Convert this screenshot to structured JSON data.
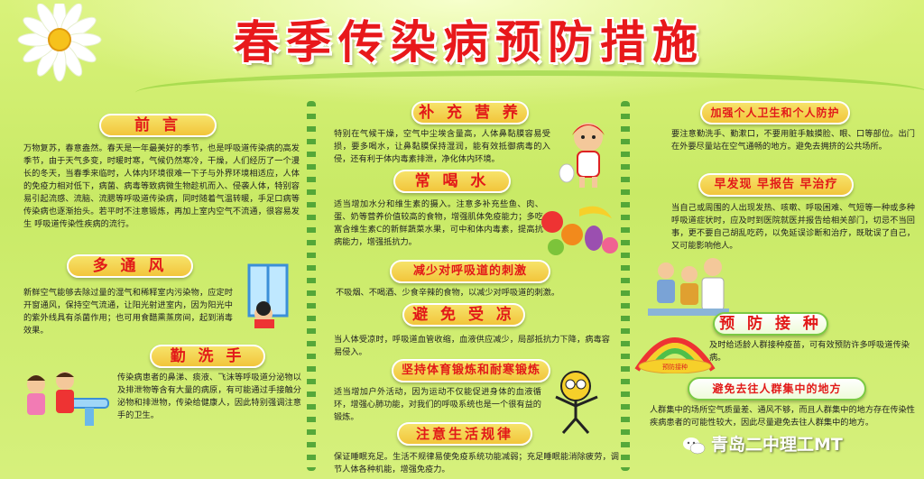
{
  "title": "春季传染病预防措施",
  "sections": {
    "preface": {
      "heading": "前 言",
      "text": "万物复苏，春意盎然。春天是一年最美好的季节，也是呼吸道传染病的高发季节，由于天气多变，时暖时寒，气候仍然寒冷，干燥，人们经历了一个漫长的冬天，当春季来临时，人体内环境很难一下子与外界环境相适应，人体的免疫力相对低下，病菌、病毒等致病微生物趁机而入、侵袭人体，特别容易引起流感、流脑、流腮等呼吸道传染病，同时随着气温转暖，手足口病等传染病也逐渐抬头。若平时不注意锻炼，再加上室内空气不流通，很容易发生 呼吸道传染性疾病的流行。"
    },
    "ventilation": {
      "heading": "多 通 风",
      "text": "新鲜空气能够去除过量的湿气和稀释室内污染物，应定时开窗通风，保持空气流通，让阳光射进室内，因为阳光中的紫外线具有杀菌作用；也可用食醋熏蒸房间，起到消毒效果。"
    },
    "handwash": {
      "heading": "勤 洗 手",
      "text": "传染病患者的鼻涕、痰液、飞沫等呼吸道分泌物以及排泄物等含有大量的病原，有可能通过手接触分泌物和排泄物，传染给健康人，因此特别强调注意手的卫生。"
    },
    "nutrition": {
      "heading": "补 充 营 养",
      "text": "特别在气候干燥，空气中尘埃含量高，人体鼻黏膜容易受损，要多喝水，让鼻黏膜保持湿润，能有效抵御病毒的入侵，还有利于体内毒素排泄，净化体内环境。"
    },
    "water": {
      "heading": "常 喝 水",
      "text": "适当增加水分和维生素的摄入。注意多补充些鱼、肉、蛋、奶等营养价值较高的食物，增强肌体免疫能力；多吃富含维生素C的新鲜蔬菜水果，可中和体内毒素，提高抗病能力，增强抵抗力。"
    },
    "respiratory": {
      "heading": "减少对呼吸道的刺激",
      "text": "不吸烟、不喝酒、少食辛辣的食物，以减少对呼吸道的刺激。"
    },
    "cold": {
      "heading": "避 免 受 凉",
      "text": "当人体受凉时，呼吸道血管收缩，血液供应减少，局部抵抗力下降，病毒容易侵入。"
    },
    "exercise": {
      "heading": "坚持体育锻炼和耐寒锻炼",
      "text": "适当增加户外活动，因为运动不仅能促进身体的血液循环，增强心肺功能，对我们的呼吸系统也是一个很有益的锻炼。"
    },
    "routine": {
      "heading": "注意生活规律",
      "text": "保证睡眠充足。生活不规律易使免疫系统功能减弱；充足睡眠能消除疲劳，调节人体各种机能，增强免疫力。"
    },
    "hygiene": {
      "heading": "加强个人卫生和个人防护",
      "text": "要注意勤洗手、勤漱口，不要用脏手触摸脸、眼、口等部位。出门在外要尽量站在空气通畅的地方。避免去拥挤的公共场所。"
    },
    "early": {
      "heading": "早发现 早报告 早治疗",
      "text": "当自己或周围的人出现发热、咳嗽、呼吸困难、气短等一种或多种呼吸道症状时，应及时到医院就医并报告给相关部门，切忌不当回事，更不要自己胡乱吃药，以免延误诊断和治疗，既耽误了自己，又可能影响他人。"
    },
    "vaccine": {
      "heading": "预 防 接 种",
      "text": "及时给适龄人群接种疫苗，可有效预防许多呼吸道传染病。",
      "banner_text": "预防接种"
    },
    "crowd": {
      "heading": "避免去往人群集中的地方",
      "text": "人群集中的场所空气质量差、通风不够，而且人群集中的地方存在传染性疾病患者的可能性较大，因此尽量避免去往人群集中的地方。"
    }
  },
  "watermark": "青岛二中理工MT",
  "colors": {
    "title": "#e8181b",
    "heading_text": "#e21919",
    "heading_bg": "#f2c53b",
    "background": "#d3ee74",
    "tree": "#3f9b2f"
  }
}
